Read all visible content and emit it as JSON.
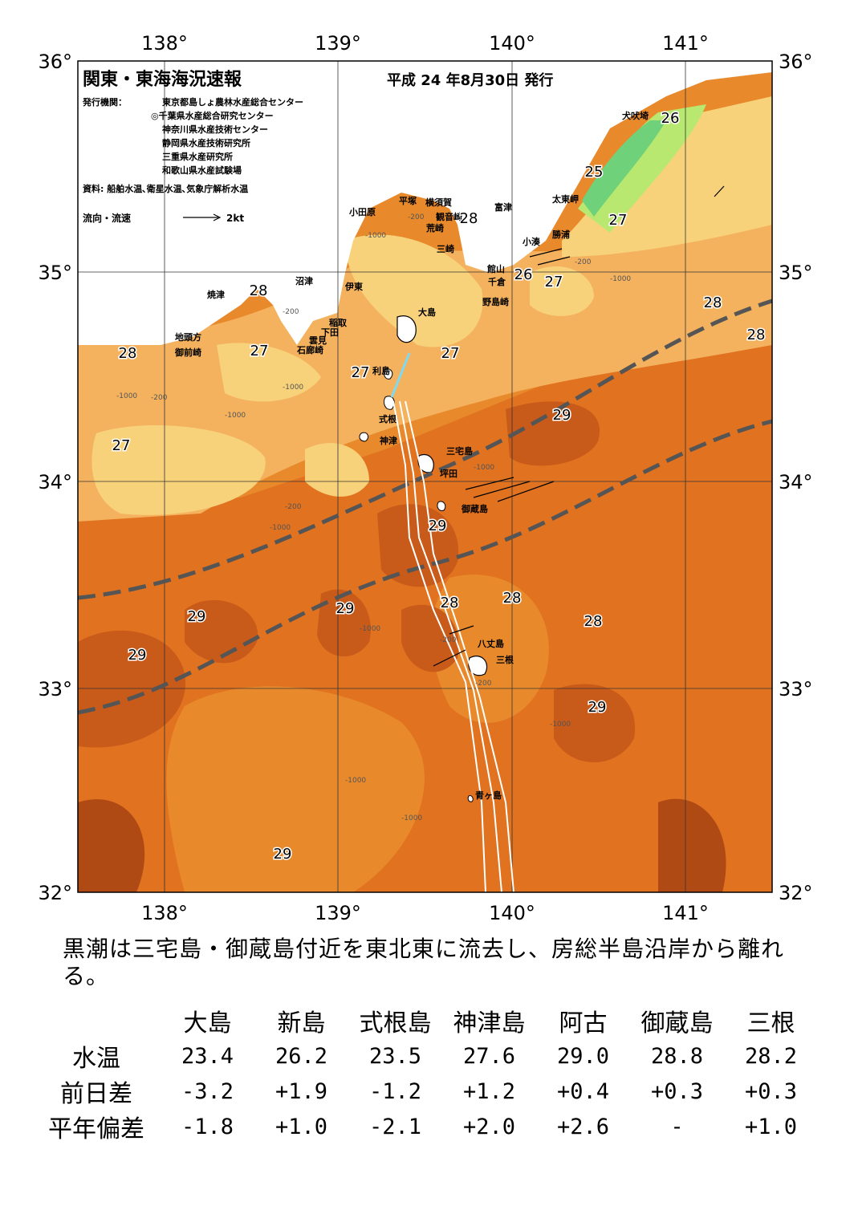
{
  "header": {
    "title": "関東・東海海況速報",
    "issue_date": "平成 24 年8月30日 発行",
    "issuers_label": "発行機関：",
    "issuers": [
      "東京都島しょ農林水産総合センター",
      "◎千葉県水産総合研究センター",
      "神奈川県水産技術センター",
      "静岡県水産技術研究所",
      "三重県水産研究所",
      "和歌山県水産試験場"
    ],
    "sources": "資料: 船舶水温､衛星水温､気象庁解析水温",
    "current_legend": "流向・流速",
    "current_scale": "2kt"
  },
  "axes": {
    "lon_labels": [
      "138°",
      "139°",
      "140°",
      "141°"
    ],
    "lat_labels": [
      "36°",
      "35°",
      "34°",
      "33°",
      "32°"
    ]
  },
  "places": [
    "犬吠埼",
    "太東岬",
    "勝浦",
    "小湊",
    "館山",
    "千倉",
    "野島崎",
    "富津",
    "観音崎",
    "横須賀",
    "平塚",
    "小田原",
    "荒崎",
    "三崎",
    "沼津",
    "伊東",
    "大島",
    "稲取",
    "下田",
    "雲見",
    "石廊崎",
    "焼津",
    "地頭方",
    "御前崎",
    "利島",
    "式根",
    "神津",
    "三宅島",
    "坪田",
    "御蔵島",
    "八丈島",
    "三根",
    "青ヶ島"
  ],
  "isotherm_labels": [
    "26",
    "25",
    "27",
    "28",
    "28",
    "26",
    "27",
    "28",
    "28",
    "28",
    "27",
    "27",
    "27",
    "27",
    "29",
    "29",
    "29",
    "29",
    "29",
    "28",
    "28",
    "29",
    "29",
    "28"
  ],
  "depth_labels": [
    "-200",
    "-1000"
  ],
  "colors": {
    "t25": "#6fd27a",
    "t26": "#b8e870",
    "t27": "#f8d27a",
    "t27b": "#f4b25e",
    "t28": "#e88a2c",
    "t28b": "#e07220",
    "t29": "#c85a1a",
    "t29b": "#b04a14",
    "land": "#ffffff",
    "kuroshio": "#555555",
    "ship_track": "#ffffff",
    "highlight_track": "#7fd9f0"
  },
  "summary": "黒潮は三宅島・御蔵島付近を東北東に流去し、房総半島沿岸から離れる。",
  "table": {
    "columns": [
      "大島",
      "新島",
      "式根島",
      "神津島",
      "阿古",
      "御蔵島",
      "三根"
    ],
    "rows": [
      {
        "label": "水温",
        "values": [
          "23.4",
          "26.2",
          "23.5",
          "27.6",
          "29.0",
          "28.8",
          "28.2"
        ]
      },
      {
        "label": "前日差",
        "values": [
          "-3.2",
          "+1.9",
          "-1.2",
          "+1.2",
          "+0.4",
          "+0.3",
          "+0.3"
        ]
      },
      {
        "label": "平年偏差",
        "values": [
          "-1.8",
          "+1.0",
          "-2.1",
          "+2.0",
          "+2.6",
          "-",
          "+1.0"
        ]
      }
    ]
  }
}
